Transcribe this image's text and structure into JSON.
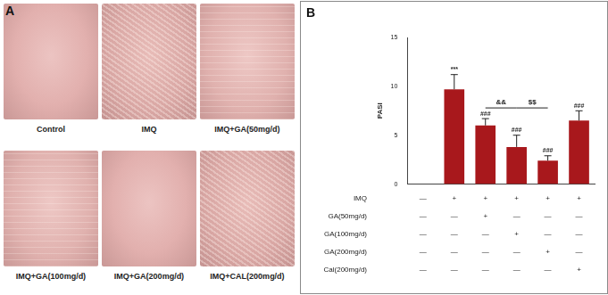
{
  "panel_a": {
    "panel_label": "A",
    "images": [
      "Control",
      "IMQ",
      "IMQ+GA(50mg/d)",
      "IMQ+GA(100mg/d)",
      "IMQ+GA(200mg/d)",
      "IMQ+CAL(200mg/d)"
    ]
  },
  "chart_data": {
    "panel_label": "B",
    "type": "bar",
    "y_label": "PASI",
    "categories": [
      null,
      null,
      null,
      null,
      null,
      null
    ],
    "values": [
      0,
      9.7,
      6.0,
      3.8,
      2.4,
      6.5
    ],
    "errors": [
      null,
      1.5,
      0.7,
      1.2,
      0.5,
      1.0
    ],
    "annotations": [
      null,
      "***",
      "###",
      "###",
      "###",
      "###"
    ],
    "comparisons": [
      {
        "text": "&&",
        "from": 2,
        "to": 3
      },
      {
        "text": "$$",
        "from": 3,
        "to": 4
      }
    ],
    "color": "#a8181c",
    "ylim": [
      0,
      15
    ],
    "yticks": [
      0,
      5,
      10,
      15
    ],
    "grid": false,
    "treatment_table": [
      {
        "label": "IMQ",
        "marks": [
          "—",
          "+",
          "+",
          "+",
          "+",
          "+"
        ]
      },
      {
        "label": "GA(50mg/d)",
        "marks": [
          "—",
          "—",
          "+",
          "—",
          "—",
          "—"
        ]
      },
      {
        "label": "GA(100mg/d)",
        "marks": [
          "—",
          "—",
          "—",
          "+",
          "—",
          "—"
        ]
      },
      {
        "label": "GA(200mg/d)",
        "marks": [
          "—",
          "—",
          "—",
          "—",
          "+",
          "—"
        ]
      },
      {
        "label": "Cal(200mg/d)",
        "marks": [
          "—",
          "—",
          "—",
          "—",
          "—",
          "+"
        ]
      }
    ]
  }
}
